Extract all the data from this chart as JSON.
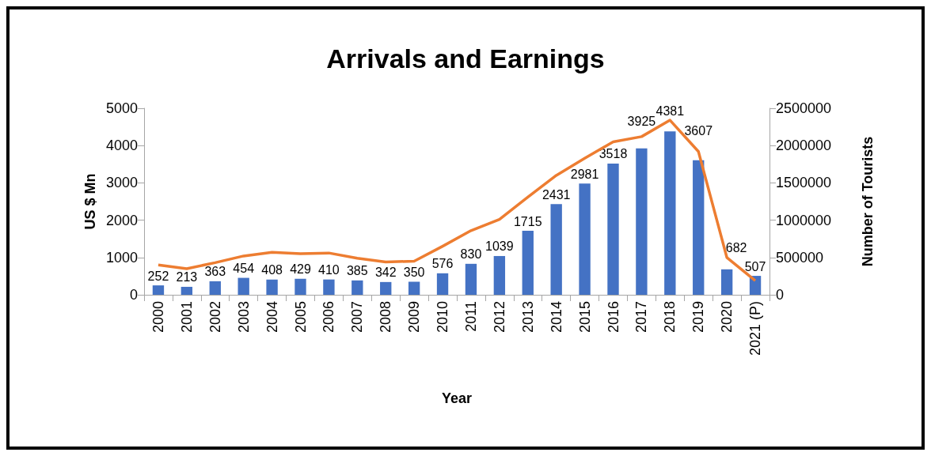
{
  "chart_data": {
    "type": "bar",
    "title": "Arrivals and Earnings",
    "xlabel": "Year",
    "ylabel": "US $ Mn",
    "y2label": "Number of Tourists",
    "categories": [
      "2000",
      "2001",
      "2002",
      "2003",
      "2004",
      "2005",
      "2006",
      "2007",
      "2008",
      "2009",
      "2010",
      "2011",
      "2012",
      "2013",
      "2014",
      "2015",
      "2016",
      "2017",
      "2018",
      "2019",
      "2020",
      "2021 (P)"
    ],
    "series": [
      {
        "color": "#4472c4",
        "values": [
          252,
          213,
          363,
          454,
          408,
          429,
          410,
          385,
          342,
          350,
          576,
          830,
          1039,
          1715,
          2431,
          2981,
          3518,
          3925,
          4381,
          3607,
          682,
          507
        ],
        "value_labels": [
          "252",
          "213",
          "363",
          "454",
          "408",
          "429",
          "410",
          "385",
          "342",
          "350",
          "576",
          "830",
          "1039",
          "1715",
          "2431",
          "2981",
          "3518",
          "3925",
          "4381",
          "3607",
          "682",
          "507"
        ]
      },
      {
        "type": "line",
        "axis": "y2",
        "color": "#ed7d31",
        "values": [
          400000,
          350000,
          430000,
          520000,
          570000,
          550000,
          560000,
          490000,
          440000,
          450000,
          650000,
          860000,
          1010000,
          1310000,
          1600000,
          1830000,
          2050000,
          2120000,
          2340000,
          1920000,
          500000,
          190000
        ]
      }
    ],
    "ylim": [
      0,
      5000
    ],
    "yticks": [
      0,
      1000,
      2000,
      3000,
      4000,
      5000
    ],
    "y2lim": [
      0,
      2500000
    ],
    "y2ticks": [
      0,
      500000,
      1000000,
      1500000,
      2000000,
      2500000
    ],
    "grid": false,
    "marker": "none"
  }
}
